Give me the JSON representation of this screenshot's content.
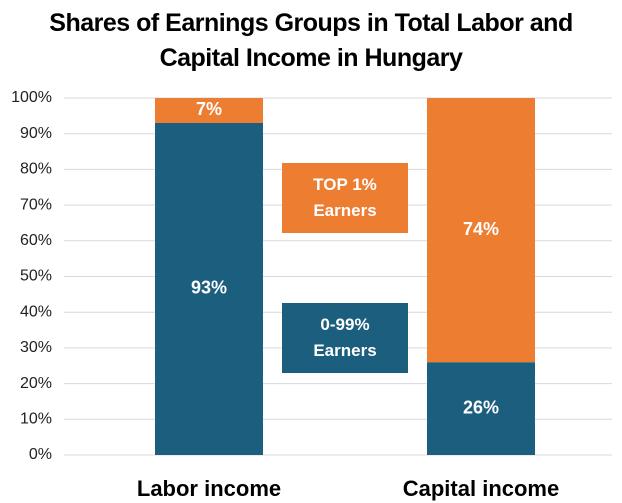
{
  "chart_data": {
    "type": "stacked_bar",
    "title": "Shares of Earnings Groups in Total Labor and Capital Income in Hungary",
    "categories": [
      "Labor income",
      "Capital income"
    ],
    "series": [
      {
        "name": "0-99% Earners",
        "color": "#1b5e7e",
        "values": [
          93,
          26
        ],
        "value_labels": [
          "93%",
          "26%"
        ]
      },
      {
        "name": "TOP 1% Earners",
        "color": "#ed7d31",
        "values": [
          7,
          74
        ],
        "value_labels": [
          "7%",
          "74%"
        ]
      }
    ],
    "ylim": [
      0,
      100
    ],
    "yticks": [
      {
        "value": 0,
        "label": "0%"
      },
      {
        "value": 10,
        "label": "10%"
      },
      {
        "value": 20,
        "label": "20%"
      },
      {
        "value": 30,
        "label": "30%"
      },
      {
        "value": 40,
        "label": "40%"
      },
      {
        "value": 50,
        "label": "50%"
      },
      {
        "value": 60,
        "label": "60%"
      },
      {
        "value": 70,
        "label": "70%"
      },
      {
        "value": 80,
        "label": "80%"
      },
      {
        "value": 90,
        "label": "90%"
      },
      {
        "value": 100,
        "label": "100%"
      }
    ],
    "grid": true,
    "legend": "center"
  }
}
